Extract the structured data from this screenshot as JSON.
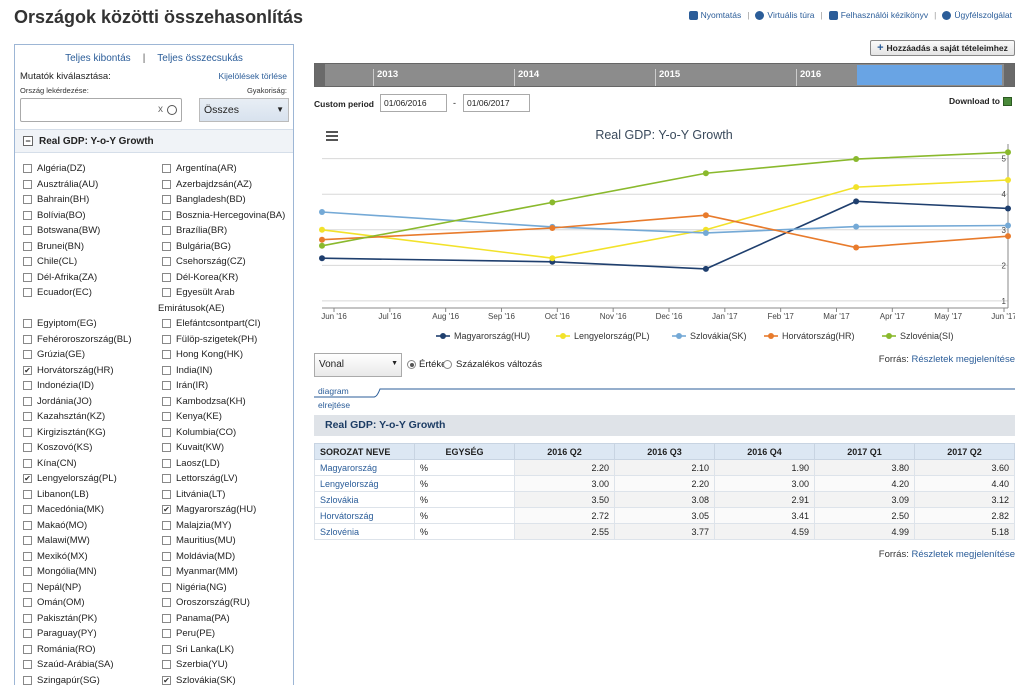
{
  "page": {
    "title": "Országok közötti összehasonlítás",
    "links": [
      "Nyomtatás",
      "Virtuális túra",
      "Felhasználói kézikönyv",
      "Ügyfélszolgálat"
    ]
  },
  "left": {
    "expand_all": "Teljes kibontás",
    "collapse_all": "Teljes összecsukás",
    "indicator_select": "Mutatók kiválasztása:",
    "clear_selection": "Kijelölések törlése",
    "country_query": "Ország lekérdezése:",
    "frequency": "Gyakoriság:",
    "search_clear": "x",
    "frequency_value": "Összes",
    "indicator_name": "Real GDP: Y-o-Y Growth",
    "countries": [
      [
        {
          "label": "Algéria(DZ)",
          "checked": false
        },
        {
          "label": "Argentína(AR)",
          "checked": false
        }
      ],
      [
        {
          "label": "Ausztrália(AU)",
          "checked": false
        },
        {
          "label": "Azerbajdzsán(AZ)",
          "checked": false
        }
      ],
      [
        {
          "label": "Bahrain(BH)",
          "checked": false
        },
        {
          "label": "Bangladesh(BD)",
          "checked": false
        }
      ],
      [
        {
          "label": "Bolívia(BO)",
          "checked": false
        },
        {
          "label": "Bosznia-Hercegovina(BA)",
          "checked": false
        }
      ],
      [
        {
          "label": "Botswana(BW)",
          "checked": false
        },
        {
          "label": "Brazília(BR)",
          "checked": false
        }
      ],
      [
        {
          "label": "Brunei(BN)",
          "checked": false
        },
        {
          "label": "Bulgária(BG)",
          "checked": false
        }
      ],
      [
        {
          "label": "Chile(CL)",
          "checked": false
        },
        {
          "label": "Csehország(CZ)",
          "checked": false
        }
      ],
      [
        {
          "label": "Dél-Afrika(ZA)",
          "checked": false
        },
        {
          "label": "Dél-Korea(KR)",
          "checked": false
        }
      ],
      [
        {
          "label": "Ecuador(EC)",
          "checked": false
        },
        {
          "label": "Egyesült Arab",
          "checked": false
        }
      ],
      [
        null,
        {
          "label": "Emirátusok(AE)",
          "checked": null
        }
      ],
      [
        {
          "label": "Egyiptom(EG)",
          "checked": false
        },
        {
          "label": "Elefántcsontpart(CI)",
          "checked": false
        }
      ],
      [
        {
          "label": "Fehéroroszország(BL)",
          "checked": false
        },
        {
          "label": "Fülöp-szigetek(PH)",
          "checked": false
        }
      ],
      [
        {
          "label": "Grúzia(GE)",
          "checked": false
        },
        {
          "label": "Hong Kong(HK)",
          "checked": false
        }
      ],
      [
        {
          "label": "Horvátország(HR)",
          "checked": true
        },
        {
          "label": "India(IN)",
          "checked": false
        }
      ],
      [
        {
          "label": "Indonézia(ID)",
          "checked": false
        },
        {
          "label": "Irán(IR)",
          "checked": false
        }
      ],
      [
        {
          "label": "Jordánia(JO)",
          "checked": false
        },
        {
          "label": "Kambodzsa(KH)",
          "checked": false
        }
      ],
      [
        {
          "label": "Kazahsztán(KZ)",
          "checked": false
        },
        {
          "label": "Kenya(KE)",
          "checked": false
        }
      ],
      [
        {
          "label": "Kirgizisztán(KG)",
          "checked": false
        },
        {
          "label": "Kolumbia(CO)",
          "checked": false
        }
      ],
      [
        {
          "label": "Koszovó(KS)",
          "checked": false
        },
        {
          "label": "Kuvait(KW)",
          "checked": false
        }
      ],
      [
        {
          "label": "Kína(CN)",
          "checked": false
        },
        {
          "label": "Laosz(LD)",
          "checked": false
        }
      ],
      [
        {
          "label": "Lengyelország(PL)",
          "checked": true
        },
        {
          "label": "Lettország(LV)",
          "checked": false
        }
      ],
      [
        {
          "label": "Libanon(LB)",
          "checked": false
        },
        {
          "label": "Litvánia(LT)",
          "checked": false
        }
      ],
      [
        {
          "label": "Macedónia(MK)",
          "checked": false
        },
        {
          "label": "Magyarország(HU)",
          "checked": true
        }
      ],
      [
        {
          "label": "Makaó(MO)",
          "checked": false
        },
        {
          "label": "Malajzia(MY)",
          "checked": false
        }
      ],
      [
        {
          "label": "Malawi(MW)",
          "checked": false
        },
        {
          "label": "Mauritius(MU)",
          "checked": false
        }
      ],
      [
        {
          "label": "Mexikó(MX)",
          "checked": false
        },
        {
          "label": "Moldávia(MD)",
          "checked": false
        }
      ],
      [
        {
          "label": "Mongólia(MN)",
          "checked": false
        },
        {
          "label": "Myanmar(MM)",
          "checked": false
        }
      ],
      [
        {
          "label": "Nepál(NP)",
          "checked": false
        },
        {
          "label": "Nigéria(NG)",
          "checked": false
        }
      ],
      [
        {
          "label": "Omán(OM)",
          "checked": false
        },
        {
          "label": "Oroszország(RU)",
          "checked": false
        }
      ],
      [
        {
          "label": "Pakisztán(PK)",
          "checked": false
        },
        {
          "label": "Panama(PA)",
          "checked": false
        }
      ],
      [
        {
          "label": "Paraguay(PY)",
          "checked": false
        },
        {
          "label": "Peru(PE)",
          "checked": false
        }
      ],
      [
        {
          "label": "Románia(RO)",
          "checked": false
        },
        {
          "label": "Sri Lanka(LK)",
          "checked": false
        }
      ],
      [
        {
          "label": "Szaúd-Arábia(SA)",
          "checked": false
        },
        {
          "label": "Szerbia(YU)",
          "checked": false
        }
      ],
      [
        {
          "label": "Szingapúr(SG)",
          "checked": false
        },
        {
          "label": "Szlovákia(SK)",
          "checked": true
        }
      ]
    ]
  },
  "controls": {
    "add_button": "Hozzáadás a saját tételeimhez",
    "timeline_years": [
      "2013",
      "2014",
      "2015",
      "2016"
    ],
    "custom_period_label": "Custom period",
    "date_from": "01/06/2016",
    "date_to": "01/06/2017",
    "date_sep": "-",
    "download_label": "Download to",
    "chart_type": "Vonal",
    "radio_values": "Értékek",
    "radio_percent": "Százalékos változás",
    "source_label": "Forrás:",
    "source_link": "Részletek megjelenítése",
    "tab_diagram": "diagram",
    "tab_hide": "elrejtése"
  },
  "chart_data": {
    "type": "line",
    "title": "Real GDP: Y-o-Y Growth",
    "x_ticks": [
      "Jun '16",
      "Jul '16",
      "Aug '16",
      "Sep '16",
      "Oct '16",
      "Nov '16",
      "Dec '16",
      "Jan '17",
      "Feb '17",
      "Mar '17",
      "Apr '17",
      "May '17",
      "Jun '17"
    ],
    "y_ticks": [
      "1",
      "2",
      "3",
      "4",
      "5"
    ],
    "ylim": [
      0.8,
      5.3
    ],
    "series": [
      {
        "name": "Magyarország(HU)",
        "color": "#1f3f6e",
        "points": [
          [
            "2016-05-15",
            2.2
          ],
          [
            "2016-09-30",
            2.1
          ],
          [
            "2016-12-31",
            1.9
          ],
          [
            "2017-03-31",
            3.8
          ],
          [
            "2017-06-30",
            3.6
          ]
        ]
      },
      {
        "name": "Lengyelország(PL)",
        "color": "#f2e22a",
        "points": [
          [
            "2016-05-15",
            3.0
          ],
          [
            "2016-09-30",
            2.2
          ],
          [
            "2016-12-31",
            3.0
          ],
          [
            "2017-03-31",
            4.2
          ],
          [
            "2017-06-30",
            4.4
          ]
        ]
      },
      {
        "name": "Szlovákia(SK)",
        "color": "#74a9d6",
        "points": [
          [
            "2016-05-15",
            3.5
          ],
          [
            "2016-09-30",
            3.08
          ],
          [
            "2016-12-31",
            2.91
          ],
          [
            "2017-03-31",
            3.09
          ],
          [
            "2017-06-30",
            3.12
          ]
        ]
      },
      {
        "name": "Horvátország(HR)",
        "color": "#e87b2c",
        "points": [
          [
            "2016-05-15",
            2.72
          ],
          [
            "2016-09-30",
            3.05
          ],
          [
            "2016-12-31",
            3.41
          ],
          [
            "2017-03-31",
            2.5
          ],
          [
            "2017-06-30",
            2.82
          ]
        ]
      },
      {
        "name": "Szlovénia(SI)",
        "color": "#8ab92d",
        "points": [
          [
            "2016-05-15",
            2.55
          ],
          [
            "2016-09-30",
            3.77
          ],
          [
            "2016-12-31",
            4.59
          ],
          [
            "2017-03-31",
            4.99
          ],
          [
            "2017-06-30",
            5.18
          ]
        ]
      }
    ]
  },
  "table": {
    "title": "Real GDP: Y-o-Y Growth",
    "headers": [
      "SOROZAT NEVE",
      "EGYSÉG",
      "2016 Q2",
      "2016 Q3",
      "2016 Q4",
      "2017 Q1",
      "2017 Q2"
    ],
    "rows": [
      [
        "Magyarország",
        "%",
        "2.20",
        "2.10",
        "1.90",
        "3.80",
        "3.60"
      ],
      [
        "Lengyelország",
        "%",
        "3.00",
        "2.20",
        "3.00",
        "4.20",
        "4.40"
      ],
      [
        "Szlovákia",
        "%",
        "3.50",
        "3.08",
        "2.91",
        "3.09",
        "3.12"
      ],
      [
        "Horvátország",
        "%",
        "2.72",
        "3.05",
        "3.41",
        "2.50",
        "2.82"
      ],
      [
        "Szlovénia",
        "%",
        "2.55",
        "3.77",
        "4.59",
        "4.99",
        "5.18"
      ]
    ]
  }
}
